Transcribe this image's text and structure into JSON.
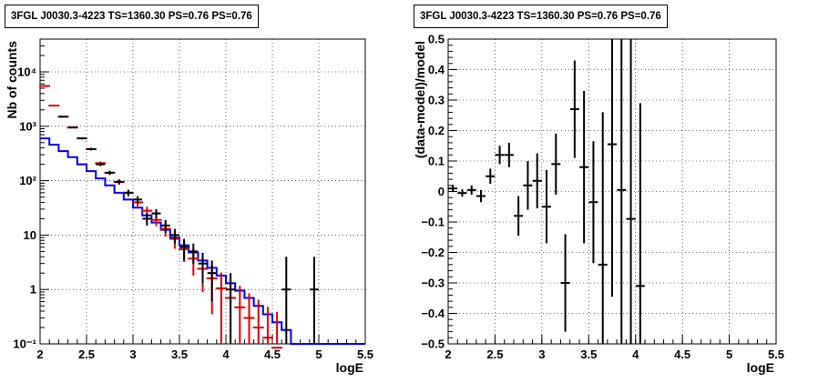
{
  "chart_data": [
    {
      "type": "scatter",
      "title": "3FGL J0030.3-4223 TS=1360.30 PS=0.76 PS=0.76",
      "xlabel": "logE",
      "ylabel": "Nb of counts",
      "xlim": [
        2,
        5.5
      ],
      "ylim": [
        0.1,
        40000
      ],
      "yscale": "log",
      "grid": true,
      "x_ticks": [
        "2",
        "2.5",
        "3",
        "3.5",
        "4",
        "4.5",
        "5",
        "5.5"
      ],
      "y_ticks": [
        "10⁻¹",
        "1",
        "10",
        "10²",
        "10³",
        "10⁴"
      ],
      "series": [
        {
          "color": "#000000",
          "kind": "data-points",
          "x": [
            2.25,
            2.35,
            2.45,
            2.55,
            2.65,
            2.75,
            2.85,
            2.95,
            3.05,
            3.15,
            3.25,
            3.35,
            3.45,
            3.55,
            3.65,
            3.75,
            3.85,
            4.05,
            4.65,
            4.95
          ],
          "y": [
            1500,
            950,
            600,
            380,
            200,
            140,
            95,
            60,
            45,
            20,
            25,
            15,
            10,
            6,
            5,
            3,
            2,
            1,
            1,
            1
          ],
          "err_lo": [
            40,
            30,
            25,
            20,
            15,
            12,
            10,
            8,
            7,
            5,
            5,
            4,
            3,
            2.5,
            2,
            1.7,
            1.4,
            1,
            1,
            1
          ],
          "err_hi": [
            40,
            30,
            25,
            20,
            15,
            12,
            10,
            8,
            7,
            5,
            5,
            4,
            3,
            2.5,
            2,
            1.7,
            1.4,
            1,
            3,
            3
          ]
        },
        {
          "color": "#e00000",
          "kind": "model-points",
          "x": [
            2.05,
            2.15,
            2.25,
            2.35,
            2.45,
            2.55,
            2.65,
            2.75,
            2.85,
            2.95,
            3.05,
            3.15,
            3.25,
            3.35,
            3.45,
            3.55,
            3.65,
            3.75,
            3.85,
            3.95,
            4.05,
            4.15,
            4.25,
            4.35,
            4.45,
            4.55
          ],
          "y": [
            5500,
            2400,
            1500,
            950,
            600,
            380,
            210,
            140,
            95,
            60,
            40,
            28,
            19,
            13,
            8.5,
            5.5,
            3.7,
            2.4,
            1.6,
            1.05,
            0.7,
            0.47,
            0.3,
            0.2,
            0.13,
            0.085
          ],
          "err_lo": [
            75,
            50,
            40,
            30,
            25,
            20,
            15,
            12,
            10,
            8,
            6.5,
            5.3,
            4.4,
            3.6,
            2.9,
            2.3,
            1.9,
            1.5,
            1.25,
            0.95,
            0.65,
            0.45,
            0.3,
            0.2,
            0.13,
            0.085
          ],
          "err_hi": [
            75,
            50,
            40,
            30,
            25,
            20,
            15,
            12,
            10,
            8,
            6.5,
            5.3,
            4.4,
            3.6,
            2.9,
            2.3,
            1.9,
            1.5,
            1.25,
            1.0,
            0.85,
            0.7,
            0.55,
            0.45,
            0.35,
            0.3
          ]
        },
        {
          "color": "#0000ee",
          "kind": "step-histogram",
          "x_edges": [
            2.0,
            2.1,
            2.2,
            2.3,
            2.4,
            2.5,
            2.6,
            2.7,
            2.8,
            2.9,
            3.0,
            3.1,
            3.2,
            3.3,
            3.4,
            3.5,
            3.6,
            3.7,
            3.8,
            3.9,
            4.0,
            4.1,
            4.2,
            4.3,
            4.4,
            4.5,
            4.6,
            4.7,
            5.5
          ],
          "y": [
            600,
            460,
            350,
            270,
            200,
            150,
            110,
            82,
            60,
            45,
            32,
            23,
            17,
            12.5,
            9,
            6.5,
            4.8,
            3.4,
            2.5,
            1.8,
            1.3,
            0.95,
            0.7,
            0.5,
            0.35,
            0.25,
            0.18,
            0.1
          ]
        }
      ]
    },
    {
      "type": "scatter",
      "title": "3FGL J0030.3-4223 TS=1360.30 PS=0.76 PS=0.76",
      "xlabel": "logE",
      "ylabel": "(data-model)/model",
      "xlim": [
        2,
        5.5
      ],
      "ylim": [
        -0.5,
        0.5
      ],
      "grid": true,
      "x_ticks": [
        "2",
        "2.5",
        "3",
        "3.5",
        "4",
        "4.5",
        "5",
        "5.5"
      ],
      "y_ticks": [
        "−0.5",
        "−0.4",
        "−0.3",
        "−0.2",
        "−0.1",
        "0",
        "0.1",
        "0.2",
        "0.3",
        "0.4",
        "0.5"
      ],
      "series": [
        {
          "color": "#000000",
          "kind": "residuals",
          "x": [
            2.05,
            2.15,
            2.25,
            2.35,
            2.45,
            2.55,
            2.65,
            2.75,
            2.85,
            2.95,
            3.05,
            3.15,
            3.25,
            3.35,
            3.45,
            3.55,
            3.65,
            3.75,
            3.85,
            3.95,
            4.05
          ],
          "y": [
            0.01,
            -0.005,
            0.005,
            -0.015,
            0.05,
            0.12,
            0.12,
            -0.08,
            0.02,
            0.035,
            -0.05,
            0.09,
            -0.3,
            0.27,
            0.08,
            -0.035,
            -0.24,
            0.155,
            0.005,
            -0.09,
            -0.31
          ],
          "err": [
            0.012,
            0.012,
            0.015,
            0.02,
            0.025,
            0.03,
            0.04,
            0.065,
            0.08,
            0.09,
            0.12,
            0.1,
            0.16,
            0.16,
            0.25,
            0.2,
            0.5,
            0.5,
            0.6,
            0.6,
            0.6
          ]
        }
      ]
    }
  ]
}
